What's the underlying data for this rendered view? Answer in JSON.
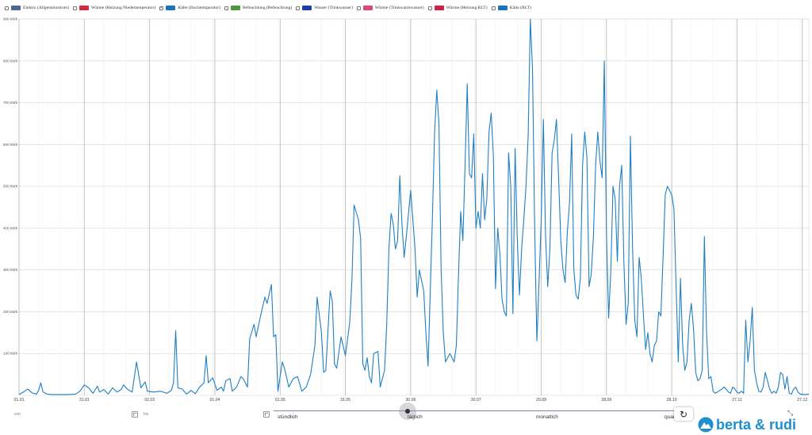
{
  "legend": [
    {
      "label": "Elektro (Allgemeinstrom)",
      "color": "#4a6891",
      "checked": false
    },
    {
      "label": "Wärme (Heizung Niedertemperatur)",
      "color": "#d22c45",
      "checked": false
    },
    {
      "label": "Kälte (Hochtemperatur)",
      "color": "#1b73b8",
      "checked": true
    },
    {
      "label": "Befeuchtung (Befeuchtung)",
      "color": "#4c9a3c",
      "checked": false
    },
    {
      "label": "Wasser (Trinkwasser)",
      "color": "#1f3fa8",
      "checked": false
    },
    {
      "label": "Wärme (Trinkwarmwasser)",
      "color": "#d64a70",
      "checked": false
    },
    {
      "label": "Wärme (Heizung RLT)",
      "color": "#d11f45",
      "checked": false
    },
    {
      "label": "Kälte (RLT)",
      "color": "#1b73b8",
      "checked": false
    }
  ],
  "controls": {
    "from_label": "von",
    "to_label": "bis",
    "steps": [
      "stündlich",
      "täglich",
      "monatlich",
      "quar"
    ],
    "active_step": "täglich"
  },
  "brand": {
    "name": "berta & rudi",
    "color": "#1d8fcc"
  },
  "chart_data": {
    "type": "line",
    "ylim": [
      0,
      900
    ],
    "y_unit": "kWh",
    "y_ticks": [
      100,
      200,
      300,
      400,
      500,
      600,
      700,
      800,
      900
    ],
    "y_tick_labels": [
      "100 kWh",
      "200 kWh",
      "300 kWh",
      "400 kWh",
      "500 kWh",
      "600 kWh",
      "700 kWh",
      "800 kWh",
      "900 kWh"
    ],
    "x_tick_labels": [
      "01.01",
      "31.01",
      "02.03",
      "01.04",
      "01.05",
      "31.05",
      "30.06",
      "30.07",
      "29.08",
      "28.09",
      "28.10",
      "27.11",
      "27.12"
    ],
    "series": [
      {
        "color": "#1f7fc2",
        "points": [
          [
            1,
            2
          ],
          [
            3,
            8
          ],
          [
            5,
            15
          ],
          [
            7,
            6
          ],
          [
            9,
            3
          ],
          [
            10,
            12
          ],
          [
            11,
            30
          ],
          [
            12,
            8
          ],
          [
            14,
            3
          ],
          [
            16,
            2
          ],
          [
            20,
            2
          ],
          [
            24,
            2
          ],
          [
            27,
            3
          ],
          [
            29,
            10
          ],
          [
            31,
            25
          ],
          [
            33,
            18
          ],
          [
            35,
            5
          ],
          [
            37,
            22
          ],
          [
            38,
            8
          ],
          [
            40,
            14
          ],
          [
            42,
            3
          ],
          [
            44,
            18
          ],
          [
            46,
            8
          ],
          [
            48,
            14
          ],
          [
            49,
            25
          ],
          [
            51,
            14
          ],
          [
            53,
            8
          ],
          [
            55,
            80
          ],
          [
            57,
            18
          ],
          [
            59,
            32
          ],
          [
            60,
            10
          ],
          [
            63,
            8
          ],
          [
            66,
            10
          ],
          [
            69,
            5
          ],
          [
            71,
            12
          ],
          [
            72,
            30
          ],
          [
            73,
            155
          ],
          [
            74,
            18
          ],
          [
            76,
            15
          ],
          [
            78,
            3
          ],
          [
            80,
            12
          ],
          [
            82,
            4
          ],
          [
            84,
            20
          ],
          [
            86,
            30
          ],
          [
            87,
            95
          ],
          [
            88,
            30
          ],
          [
            90,
            42
          ],
          [
            92,
            12
          ],
          [
            94,
            20
          ],
          [
            95,
            10
          ],
          [
            96,
            35
          ],
          [
            98,
            40
          ],
          [
            99,
            10
          ],
          [
            101,
            20
          ],
          [
            103,
            45
          ],
          [
            104,
            40
          ],
          [
            106,
            20
          ],
          [
            107,
            135
          ],
          [
            109,
            170
          ],
          [
            110,
            140
          ],
          [
            112,
            190
          ],
          [
            114,
            235
          ],
          [
            115,
            220
          ],
          [
            117,
            265
          ],
          [
            118,
            140
          ],
          [
            119,
            145
          ],
          [
            120,
            10
          ],
          [
            122,
            80
          ],
          [
            123,
            65
          ],
          [
            125,
            20
          ],
          [
            127,
            40
          ],
          [
            129,
            45
          ],
          [
            131,
            10
          ],
          [
            133,
            20
          ],
          [
            135,
            50
          ],
          [
            137,
            120
          ],
          [
            138,
            235
          ],
          [
            140,
            150
          ],
          [
            141,
            55
          ],
          [
            142,
            60
          ],
          [
            144,
            250
          ],
          [
            145,
            225
          ],
          [
            146,
            75
          ],
          [
            147,
            65
          ],
          [
            149,
            140
          ],
          [
            151,
            95
          ],
          [
            153,
            175
          ],
          [
            154,
            275
          ],
          [
            155,
            455
          ],
          [
            157,
            420
          ],
          [
            158,
            375
          ],
          [
            159,
            75
          ],
          [
            160,
            60
          ],
          [
            161,
            90
          ],
          [
            162,
            45
          ],
          [
            163,
            30
          ],
          [
            164,
            100
          ],
          [
            166,
            105
          ],
          [
            167,
            20
          ],
          [
            169,
            60
          ],
          [
            170,
            170
          ],
          [
            171,
            350
          ],
          [
            172,
            435
          ],
          [
            173,
            410
          ],
          [
            174,
            350
          ],
          [
            175,
            370
          ],
          [
            176,
            525
          ],
          [
            177,
            410
          ],
          [
            178,
            330
          ],
          [
            179,
            380
          ],
          [
            181,
            490
          ],
          [
            183,
            350
          ],
          [
            184,
            235
          ],
          [
            185,
            300
          ],
          [
            187,
            250
          ],
          [
            188,
            150
          ],
          [
            189,
            70
          ],
          [
            191,
            425
          ],
          [
            192,
            630
          ],
          [
            193,
            730
          ],
          [
            194,
            650
          ],
          [
            195,
            300
          ],
          [
            196,
            150
          ],
          [
            197,
            80
          ],
          [
            198,
            90
          ],
          [
            199,
            100
          ],
          [
            200,
            90
          ],
          [
            201,
            80
          ],
          [
            202,
            120
          ],
          [
            203,
            290
          ],
          [
            204,
            440
          ],
          [
            205,
            370
          ],
          [
            206,
            550
          ],
          [
            207,
            745
          ],
          [
            208,
            530
          ],
          [
            209,
            520
          ],
          [
            210,
            625
          ],
          [
            211,
            400
          ],
          [
            212,
            440
          ],
          [
            213,
            400
          ],
          [
            214,
            530
          ],
          [
            215,
            420
          ],
          [
            216,
            470
          ],
          [
            217,
            630
          ],
          [
            218,
            675
          ],
          [
            219,
            575
          ],
          [
            220,
            255
          ],
          [
            221,
            400
          ],
          [
            222,
            340
          ],
          [
            223,
            230
          ],
          [
            224,
            200
          ],
          [
            225,
            190
          ],
          [
            226,
            580
          ],
          [
            227,
            500
          ],
          [
            228,
            195
          ],
          [
            229,
            590
          ],
          [
            230,
            375
          ],
          [
            231,
            240
          ],
          [
            232,
            350
          ],
          [
            233,
            420
          ],
          [
            234,
            500
          ],
          [
            235,
            620
          ],
          [
            236,
            900
          ],
          [
            237,
            780
          ],
          [
            238,
            400
          ],
          [
            239,
            130
          ],
          [
            240,
            270
          ],
          [
            241,
            420
          ],
          [
            242,
            660
          ],
          [
            243,
            380
          ],
          [
            244,
            260
          ],
          [
            245,
            350
          ],
          [
            246,
            580
          ],
          [
            247,
            610
          ],
          [
            248,
            660
          ],
          [
            249,
            520
          ],
          [
            250,
            370
          ],
          [
            251,
            300
          ],
          [
            252,
            270
          ],
          [
            253,
            390
          ],
          [
            254,
            460
          ],
          [
            255,
            625
          ],
          [
            256,
            300
          ],
          [
            257,
            240
          ],
          [
            258,
            230
          ],
          [
            259,
            280
          ],
          [
            260,
            550
          ],
          [
            261,
            630
          ],
          [
            262,
            570
          ],
          [
            263,
            260
          ],
          [
            264,
            290
          ],
          [
            265,
            380
          ],
          [
            266,
            550
          ],
          [
            267,
            630
          ],
          [
            268,
            560
          ],
          [
            269,
            520
          ],
          [
            270,
            800
          ],
          [
            271,
            385
          ],
          [
            272,
            185
          ],
          [
            273,
            300
          ],
          [
            274,
            500
          ],
          [
            275,
            470
          ],
          [
            276,
            320
          ],
          [
            277,
            500
          ],
          [
            278,
            550
          ],
          [
            279,
            320
          ],
          [
            280,
            170
          ],
          [
            281,
            220
          ],
          [
            282,
            620
          ],
          [
            283,
            350
          ],
          [
            284,
            180
          ],
          [
            285,
            140
          ],
          [
            286,
            330
          ],
          [
            287,
            280
          ],
          [
            288,
            190
          ],
          [
            289,
            110
          ],
          [
            290,
            150
          ],
          [
            291,
            100
          ],
          [
            292,
            80
          ],
          [
            293,
            120
          ],
          [
            294,
            130
          ],
          [
            295,
            200
          ],
          [
            296,
            190
          ],
          [
            297,
            330
          ],
          [
            298,
            480
          ],
          [
            299,
            500
          ],
          [
            301,
            480
          ],
          [
            302,
            445
          ],
          [
            303,
            260
          ],
          [
            304,
            80
          ],
          [
            305,
            280
          ],
          [
            306,
            120
          ],
          [
            307,
            60
          ],
          [
            308,
            80
          ],
          [
            309,
            180
          ],
          [
            310,
            220
          ],
          [
            311,
            160
          ],
          [
            312,
            55
          ],
          [
            313,
            35
          ],
          [
            314,
            40
          ],
          [
            315,
            60
          ],
          [
            316,
            380
          ],
          [
            317,
            150
          ],
          [
            318,
            40
          ],
          [
            319,
            45
          ],
          [
            320,
            10
          ],
          [
            321,
            5
          ],
          [
            322,
            8
          ],
          [
            324,
            15
          ],
          [
            325,
            20
          ],
          [
            326,
            15
          ],
          [
            327,
            8
          ],
          [
            328,
            5
          ],
          [
            329,
            20
          ],
          [
            330,
            15
          ],
          [
            331,
            8
          ],
          [
            332,
            5
          ],
          [
            333,
            10
          ],
          [
            334,
            5
          ],
          [
            335,
            180
          ],
          [
            336,
            80
          ],
          [
            337,
            130
          ],
          [
            338,
            210
          ],
          [
            339,
            60
          ],
          [
            340,
            30
          ],
          [
            341,
            10
          ],
          [
            342,
            8
          ],
          [
            343,
            20
          ],
          [
            344,
            55
          ],
          [
            345,
            35
          ],
          [
            346,
            15
          ],
          [
            347,
            5
          ],
          [
            348,
            10
          ],
          [
            349,
            5
          ],
          [
            350,
            20
          ],
          [
            351,
            55
          ],
          [
            352,
            50
          ],
          [
            353,
            15
          ],
          [
            354,
            45
          ],
          [
            355,
            5
          ],
          [
            356,
            3
          ],
          [
            357,
            15
          ],
          [
            358,
            20
          ],
          [
            359,
            8
          ],
          [
            360,
            3
          ],
          [
            362,
            2
          ],
          [
            364,
            3
          ]
        ]
      }
    ],
    "grid": true
  }
}
